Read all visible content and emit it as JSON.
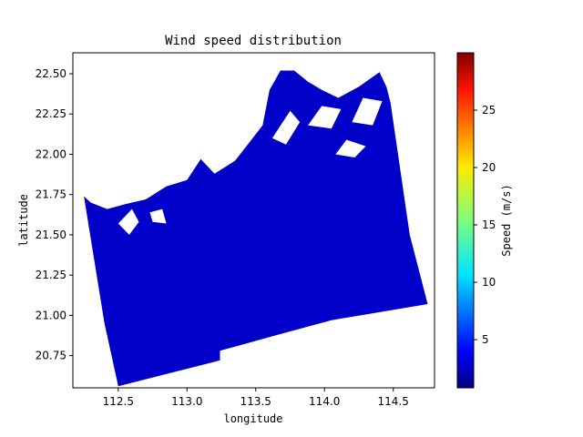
{
  "chart_data": {
    "type": "heatmap",
    "title": "Wind speed distribution",
    "xlabel": "longitude",
    "ylabel": "latitude",
    "xlim": [
      112.17,
      114.8
    ],
    "ylim": [
      20.55,
      22.63
    ],
    "x_ticks": [
      {
        "value": 112.5,
        "label": "112.5"
      },
      {
        "value": 113.0,
        "label": "113.0"
      },
      {
        "value": 113.5,
        "label": "113.5"
      },
      {
        "value": 114.0,
        "label": "114.0"
      },
      {
        "value": 114.5,
        "label": "114.5"
      }
    ],
    "y_ticks": [
      {
        "value": 20.75,
        "label": "20.75"
      },
      {
        "value": 21.0,
        "label": "21.00"
      },
      {
        "value": 21.25,
        "label": "21.25"
      },
      {
        "value": 21.5,
        "label": "21.50"
      },
      {
        "value": 21.75,
        "label": "21.75"
      },
      {
        "value": 22.0,
        "label": "22.00"
      },
      {
        "value": 22.25,
        "label": "22.25"
      },
      {
        "value": 22.5,
        "label": "22.50"
      }
    ],
    "colorbar": {
      "label": "Speed (m/s)",
      "range": [
        0.8,
        30
      ],
      "colormap": "jet",
      "ticks": [
        {
          "value": 5,
          "label": "5"
        },
        {
          "value": 10,
          "label": "10"
        },
        {
          "value": 15,
          "label": "15"
        },
        {
          "value": 20,
          "label": "20"
        },
        {
          "value": 25,
          "label": "25"
        }
      ]
    },
    "dominant_color": "#0000c8",
    "grid": false,
    "coverage_polygon": [
      [
        112.25,
        21.74
      ],
      [
        112.3,
        21.7
      ],
      [
        112.42,
        21.66
      ],
      [
        112.55,
        21.69
      ],
      [
        112.7,
        21.72
      ],
      [
        112.85,
        21.8
      ],
      [
        113.0,
        21.84
      ],
      [
        113.1,
        21.97
      ],
      [
        113.2,
        21.88
      ],
      [
        113.35,
        21.96
      ],
      [
        113.45,
        22.07
      ],
      [
        113.55,
        22.18
      ],
      [
        113.6,
        22.4
      ],
      [
        113.68,
        22.52
      ],
      [
        113.78,
        22.52
      ],
      [
        113.88,
        22.45
      ],
      [
        113.98,
        22.4
      ],
      [
        114.1,
        22.35
      ],
      [
        114.25,
        22.42
      ],
      [
        114.4,
        22.51
      ],
      [
        114.45,
        22.42
      ],
      [
        114.48,
        22.32
      ],
      [
        114.62,
        21.5
      ],
      [
        114.75,
        21.07
      ],
      [
        114.05,
        20.97
      ],
      [
        113.62,
        20.87
      ],
      [
        113.24,
        20.78
      ],
      [
        113.24,
        20.72
      ],
      [
        112.5,
        20.56
      ],
      [
        112.4,
        20.95
      ]
    ],
    "land_patches": [
      [
        [
          112.5,
          21.57
        ],
        [
          112.58,
          21.5
        ],
        [
          112.65,
          21.58
        ],
        [
          112.6,
          21.66
        ]
      ],
      [
        [
          112.75,
          21.58
        ],
        [
          112.85,
          21.57
        ],
        [
          112.82,
          21.66
        ],
        [
          112.73,
          21.64
        ]
      ],
      [
        [
          113.62,
          22.1
        ],
        [
          113.72,
          22.06
        ],
        [
          113.82,
          22.2
        ],
        [
          113.75,
          22.27
        ]
      ],
      [
        [
          113.88,
          22.18
        ],
        [
          114.05,
          22.16
        ],
        [
          114.12,
          22.28
        ],
        [
          113.98,
          22.3
        ]
      ],
      [
        [
          114.08,
          22.0
        ],
        [
          114.22,
          21.98
        ],
        [
          114.3,
          22.05
        ],
        [
          114.16,
          22.09
        ]
      ],
      [
        [
          114.2,
          22.2
        ],
        [
          114.35,
          22.18
        ],
        [
          114.42,
          22.33
        ],
        [
          114.28,
          22.35
        ]
      ]
    ]
  }
}
